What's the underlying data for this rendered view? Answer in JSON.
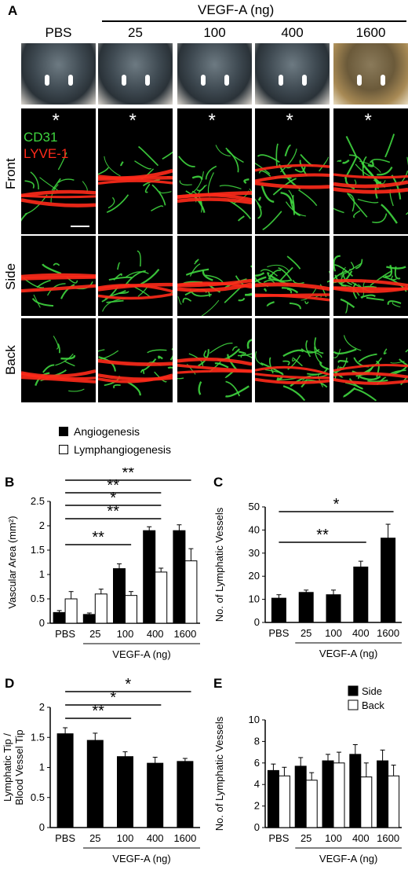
{
  "panelA": {
    "letter": "A",
    "vegf_header": "VEGF-A  (ng)",
    "columns": [
      "PBS",
      "25",
      "100",
      "400",
      "1600"
    ],
    "rows": [
      "Front",
      "Side",
      "Back"
    ],
    "stain_cd31": "CD31",
    "stain_lyve1": "LYVE-1",
    "asterisk": "*",
    "colors": {
      "cd31": "#3fd63f",
      "lyve1": "#ff2a1a"
    }
  },
  "legend": {
    "angiogenesis": "Angiogenesis",
    "lymphangiogenesis": "Lymphangiogenesis"
  },
  "chart_data": [
    {
      "panel": "B",
      "type": "bar",
      "categories": [
        "PBS",
        "25",
        "100",
        "400",
        "1600"
      ],
      "series": [
        {
          "name": "Angiogenesis",
          "values": [
            0.22,
            0.18,
            1.12,
            1.9,
            1.9
          ],
          "errors": [
            0.04,
            0.03,
            0.1,
            0.08,
            0.12
          ],
          "color": "#000000"
        },
        {
          "name": "Lymphangiogenesis",
          "values": [
            0.5,
            0.6,
            0.57,
            1.05,
            1.28
          ],
          "errors": [
            0.15,
            0.1,
            0.08,
            0.08,
            0.25
          ],
          "color": "#ffffff"
        }
      ],
      "ylabel": "Vascular Area (mm²)",
      "xgroup_label": "VEGF-A (ng)",
      "ylim": [
        0,
        2.5
      ],
      "yticks": [
        "0",
        "0.5",
        "1",
        "1.5",
        "2",
        "2.5"
      ],
      "significance": [
        {
          "from": "PBS",
          "to": "1600",
          "label": "**"
        },
        {
          "from": "PBS",
          "to": "400",
          "label": "**"
        },
        {
          "from": "PBS",
          "to": "400",
          "label": "*"
        },
        {
          "from": "PBS",
          "to": "400",
          "label": "**"
        },
        {
          "from": "PBS",
          "to": "100",
          "label": "**"
        }
      ]
    },
    {
      "panel": "C",
      "type": "bar",
      "categories": [
        "PBS",
        "25",
        "100",
        "400",
        "1600"
      ],
      "series": [
        {
          "values": [
            10.5,
            13,
            12,
            24,
            36.5
          ],
          "errors": [
            1.5,
            1,
            2,
            2.5,
            6
          ],
          "color": "#000000"
        }
      ],
      "ylabel": "No. of Lymphatic Vessels",
      "xgroup_label": "VEGF-A (ng)",
      "ylim": [
        0,
        50
      ],
      "yticks": [
        "0",
        "10",
        "20",
        "30",
        "40",
        "50"
      ],
      "significance": [
        {
          "from": "PBS",
          "to": "1600",
          "label": "*"
        },
        {
          "from": "PBS",
          "to": "400",
          "label": "**"
        }
      ]
    },
    {
      "panel": "D",
      "type": "bar",
      "categories": [
        "PBS",
        "25",
        "100",
        "400",
        "1600"
      ],
      "series": [
        {
          "values": [
            1.56,
            1.45,
            1.18,
            1.07,
            1.1
          ],
          "errors": [
            0.1,
            0.12,
            0.08,
            0.1,
            0.05
          ],
          "color": "#000000"
        }
      ],
      "ylabel": "Lymphatic Tip / Blood Vessel Tip",
      "xgroup_label": "VEGF-A (ng)",
      "ylim": [
        0,
        2
      ],
      "yticks": [
        "0",
        "0.5",
        "1",
        "1.5",
        "2"
      ],
      "significance": [
        {
          "from": "PBS",
          "to": "1600",
          "label": "*"
        },
        {
          "from": "PBS",
          "to": "400",
          "label": "*"
        },
        {
          "from": "PBS",
          "to": "100",
          "label": "**"
        }
      ]
    },
    {
      "panel": "E",
      "type": "bar",
      "categories": [
        "PBS",
        "25",
        "100",
        "400",
        "1600"
      ],
      "series": [
        {
          "name": "Side",
          "values": [
            5.3,
            5.7,
            6.2,
            6.8,
            6.2
          ],
          "errors": [
            0.6,
            0.8,
            0.6,
            0.9,
            1.0
          ],
          "color": "#000000"
        },
        {
          "name": "Back",
          "values": [
            4.8,
            4.4,
            6.0,
            4.7,
            4.8
          ],
          "errors": [
            0.8,
            0.7,
            1.0,
            1.3,
            1.0
          ],
          "color": "#ffffff"
        }
      ],
      "ylabel": "No. of Lymphatic Vessels",
      "xgroup_label": "VEGF-A (ng)",
      "ylim": [
        0,
        10
      ],
      "yticks": [
        "0",
        "2",
        "4",
        "6",
        "8",
        "10"
      ],
      "legend": [
        "Side",
        "Back"
      ],
      "significance": []
    }
  ]
}
